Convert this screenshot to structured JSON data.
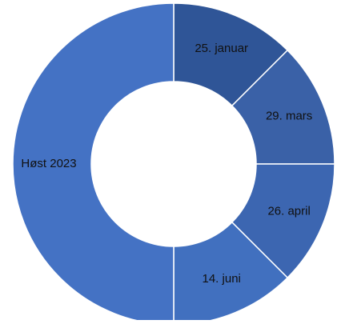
{
  "chart_data": {
    "type": "donut",
    "categories": [
      "25. januar",
      "29. mars",
      "26. april",
      "14. juni",
      "Høst 2023"
    ],
    "values": [
      12.5,
      12.5,
      12.5,
      12.5,
      50
    ],
    "colors": [
      "#2f5597",
      "#3a61a7",
      "#3c66b1",
      "#4170bf",
      "#4472c4"
    ]
  }
}
